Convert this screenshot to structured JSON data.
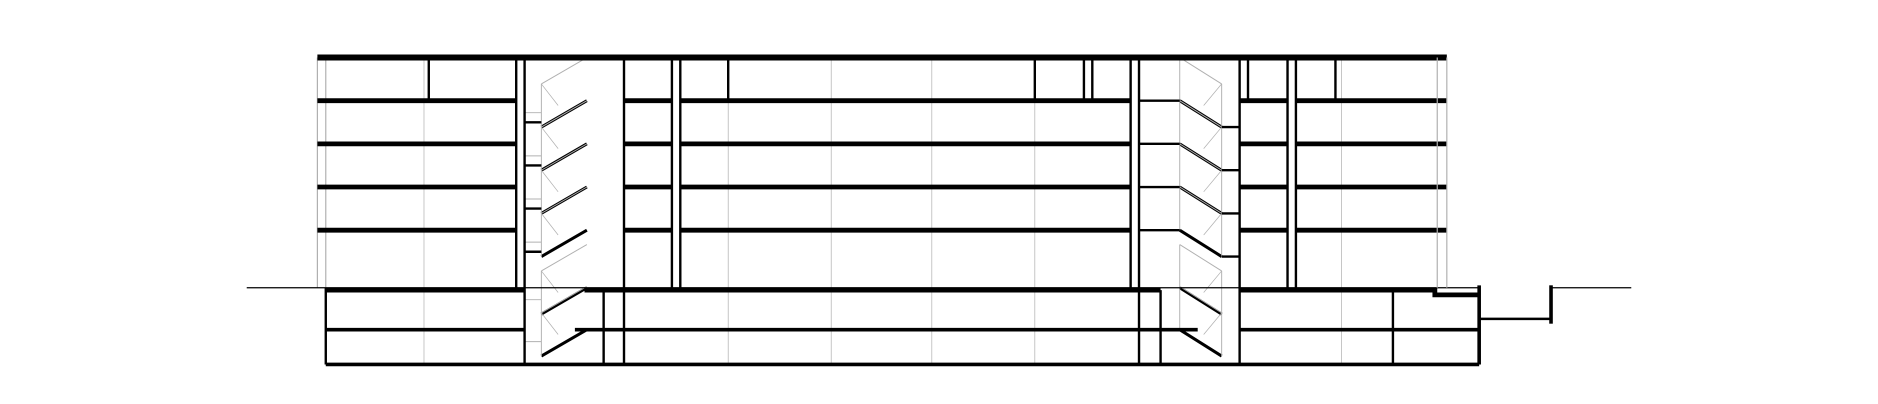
{
  "drawing": {
    "type": "architectural-section",
    "colors": {
      "background": "#ffffff",
      "structure": "#000000",
      "thin_lines": "#b0b0b0"
    }
  }
}
